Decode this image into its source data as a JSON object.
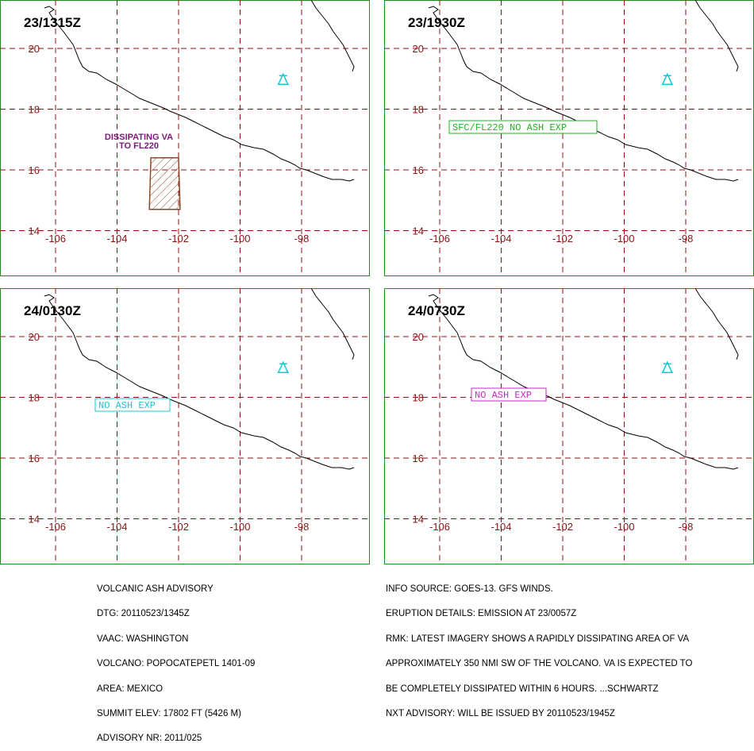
{
  "panels": [
    {
      "time": "23/1315Z",
      "label": "",
      "label_color": "",
      "ash_label": [
        "DISSIPATING VA",
        "TO FL220"
      ],
      "ash_color": "#7b1a7b",
      "ash_polygon": [
        [
          -102.9,
          16.4
        ],
        [
          -102,
          16.4
        ],
        [
          -101.95,
          14.7
        ],
        [
          -102.95,
          14.7
        ]
      ]
    },
    {
      "time": "23/1930Z",
      "label": "SFC/FL220 NO ASH EXP",
      "label_color": "#22b522",
      "ash_label": [],
      "ash_polygon": []
    },
    {
      "time": "24/0130Z",
      "label": "NO ASH EXP",
      "label_color": "#19c7d6",
      "ash_label": [],
      "ash_polygon": []
    },
    {
      "time": "24/0730Z",
      "label": "NO ASH EXP",
      "label_color": "#c829c8",
      "ash_label": [],
      "ash_polygon": []
    }
  ],
  "axes": {
    "lon_ticks": [
      "-106",
      "-104",
      "-102",
      "-100",
      "-98"
    ],
    "lat_ticks": [
      "20",
      "18",
      "16",
      "14"
    ]
  },
  "volcano": {
    "icon": "volcano-triangle-icon",
    "color": "#19c7d6",
    "lon": -98.6,
    "lat": 19.0
  },
  "colors": {
    "frame": "#1f8f1f",
    "grid": "#8a1414",
    "ash_fill": "#8a4a2a"
  },
  "advisory_left": [
    "VOLCANIC ASH ADVISORY",
    "DTG: 20110523/1345Z",
    "VAAC: WASHINGTON",
    "VOLCANO: POPOCATEPETL 1401-09",
    "AREA: MEXICO",
    "SUMMIT ELEV: 17802 FT (5426 M)",
    "ADVISORY NR: 2011/025"
  ],
  "advisory_right": [
    "INFO SOURCE: GOES-13. GFS WINDS.",
    "ERUPTION DETAILS: EMISSION AT 23/0057Z",
    "RMK: LATEST IMAGERY SHOWS A RAPIDLY DISSIPATING AREA OF VA",
    "APPROXIMATELY 350 NMI SW OF THE VOLCANO. VA IS EXPECTED TO",
    "BE COMPLETELY DISSIPATED WITHIN 6 HOURS. ...SCHWARTZ",
    "NXT ADVISORY: WILL BE ISSUED BY 20110523/1945Z"
  ]
}
